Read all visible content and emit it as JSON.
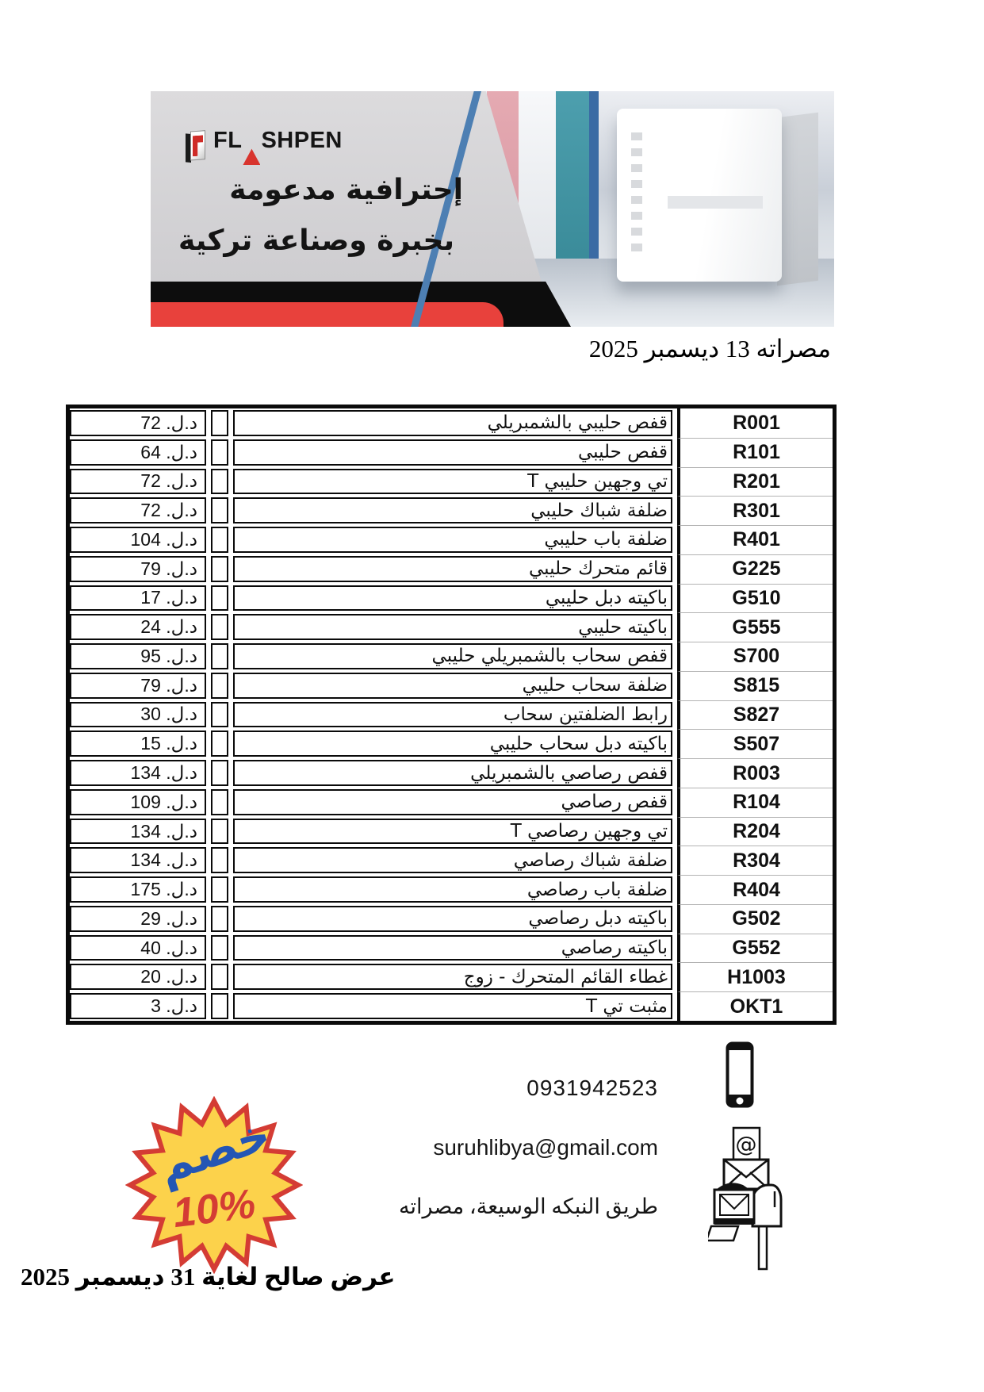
{
  "banner": {
    "brand": "FLASHPEN",
    "slogan_line1": "إحترافية مدعومة",
    "slogan_line2": "بخبرة وصناعة تركية"
  },
  "date_line": "مصراته 13 ديسمبر 2025",
  "price_table": {
    "currency_label": "د.ل.",
    "rows": [
      {
        "code": "R001",
        "desc": "قفص حليبي بالشمبريلي",
        "price": "72"
      },
      {
        "code": "R101",
        "desc": "قفص حليبي",
        "price": "64"
      },
      {
        "code": "R201",
        "desc": "تي وجهين حليبي T",
        "price": "72"
      },
      {
        "code": "R301",
        "desc": "ضلفة شباك حليبي",
        "price": "72"
      },
      {
        "code": "R401",
        "desc": "ضلفة باب حليبي",
        "price": "104"
      },
      {
        "code": "G225",
        "desc": "قائم متحرك حليبي",
        "price": "79"
      },
      {
        "code": "G510",
        "desc": "باكيته دبل حليبي",
        "price": "17"
      },
      {
        "code": "G555",
        "desc": "باكيته حليبي",
        "price": "24"
      },
      {
        "code": "S700",
        "desc": "قفص سحاب بالشمبريلي حليبي",
        "price": "95"
      },
      {
        "code": "S815",
        "desc": "ضلفة سحاب حليبي",
        "price": "79"
      },
      {
        "code": "S827",
        "desc": "رابط الضلفتين سحاب",
        "price": "30"
      },
      {
        "code": "S507",
        "desc": "باكيته دبل سحاب حليبي",
        "price": "15"
      },
      {
        "code": "R003",
        "desc": "قفص رصاصي بالشمبريلي",
        "price": "134"
      },
      {
        "code": "R104",
        "desc": "قفص رصاصي",
        "price": "109"
      },
      {
        "code": "R204",
        "desc": "تي وجهين رصاصي T",
        "price": "134"
      },
      {
        "code": "R304",
        "desc": "ضلفة شباك رصاصي",
        "price": "134"
      },
      {
        "code": "R404",
        "desc": "ضلفة باب رصاصي",
        "price": "175"
      },
      {
        "code": "G502",
        "desc": "باكيته دبل رصاصي",
        "price": "29"
      },
      {
        "code": "G552",
        "desc": "باكيته رصاصي",
        "price": "40"
      },
      {
        "code": "H1003",
        "desc": "غطاء القائم المتحرك - زوج",
        "price": "20"
      },
      {
        "code": "OKT1",
        "desc": "مثبت تي T",
        "price": "3"
      }
    ]
  },
  "contact": {
    "phone": "0931942523",
    "email": "suruhlibya@gmail.com",
    "address": "طريق النبكه الوسيعة، مصراته",
    "icons": {
      "phone": "smartphone-icon",
      "email": "envelope-at-icon",
      "address": "mailbox-icon"
    }
  },
  "discount_badge": {
    "label": "خصم",
    "percent": "10%"
  },
  "validity_note": "عرض صالح لغاية 31 ديسمبر 2025",
  "colors": {
    "accent_red": "#e8413c",
    "badge_yellow": "#fcd24b",
    "badge_blue": "#2456b4",
    "badge_red": "#d43c34",
    "banner_blue_line": "#4d7fb3"
  }
}
